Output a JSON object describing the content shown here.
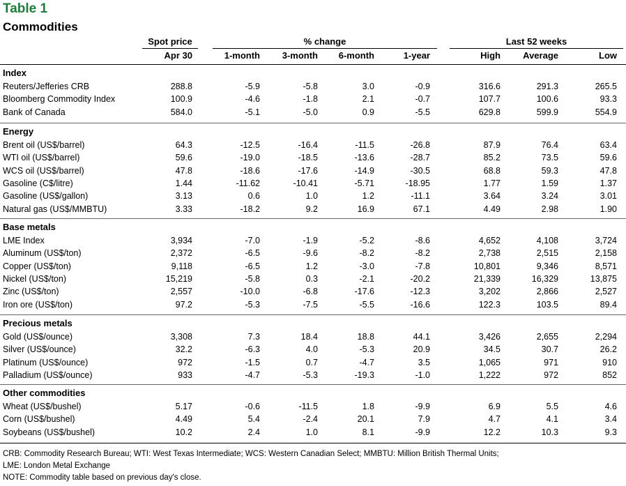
{
  "title": "Table 1",
  "subtitle": "Commodities",
  "header": {
    "spot_group": "Spot price",
    "change_group": "% change",
    "weeks_group": "Last 52 weeks",
    "columns": [
      "Apr 30",
      "1-month",
      "3-month",
      "6-month",
      "1-year",
      "High",
      "Average",
      "Low"
    ]
  },
  "sections": [
    {
      "name": "Index",
      "rows": [
        {
          "label": "Reuters/Jefferies CRB",
          "values": [
            "288.8",
            "-5.9",
            "-5.8",
            "3.0",
            "-0.9",
            "316.6",
            "291.3",
            "265.5"
          ]
        },
        {
          "label": "Bloomberg Commodity Index",
          "values": [
            "100.9",
            "-4.6",
            "-1.8",
            "2.1",
            "-0.7",
            "107.7",
            "100.6",
            "93.3"
          ]
        },
        {
          "label": "Bank of Canada",
          "values": [
            "584.0",
            "-5.1",
            "-5.0",
            "0.9",
            "-5.5",
            "629.8",
            "599.9",
            "554.9"
          ]
        }
      ]
    },
    {
      "name": "Energy",
      "rows": [
        {
          "label": "Brent oil (US$/barrel)",
          "values": [
            "64.3",
            "-12.5",
            "-16.4",
            "-11.5",
            "-26.8",
            "87.9",
            "76.4",
            "63.4"
          ]
        },
        {
          "label": "WTI oil (US$/barrel)",
          "values": [
            "59.6",
            "-19.0",
            "-18.5",
            "-13.6",
            "-28.7",
            "85.2",
            "73.5",
            "59.6"
          ]
        },
        {
          "label": "WCS oil (US$/barrel)",
          "values": [
            "47.8",
            "-18.6",
            "-17.6",
            "-14.9",
            "-30.5",
            "68.8",
            "59.3",
            "47.8"
          ]
        },
        {
          "label": "Gasoline (C$/litre)",
          "values": [
            "1.44",
            "-11.62",
            "-10.41",
            "-5.71",
            "-18.95",
            "1.77",
            "1.59",
            "1.37"
          ]
        },
        {
          "label": "Gasoline (US$/gallon)",
          "values": [
            "3.13",
            "0.6",
            "1.0",
            "1.2",
            "-11.1",
            "3.64",
            "3.24",
            "3.01"
          ]
        },
        {
          "label": "Natural gas (US$/MMBTU)",
          "values": [
            "3.33",
            "-18.2",
            "9.2",
            "16.9",
            "67.1",
            "4.49",
            "2.98",
            "1.90"
          ]
        }
      ]
    },
    {
      "name": "Base metals",
      "rows": [
        {
          "label": "LME Index",
          "values": [
            "3,934",
            "-7.0",
            "-1.9",
            "-5.2",
            "-8.6",
            "4,652",
            "4,108",
            "3,724"
          ]
        },
        {
          "label": "Aluminum (US$/ton)",
          "values": [
            "2,372",
            "-6.5",
            "-9.6",
            "-8.2",
            "-8.2",
            "2,738",
            "2,515",
            "2,158"
          ]
        },
        {
          "label": "Copper (US$/ton)",
          "values": [
            "9,118",
            "-6.5",
            "1.2",
            "-3.0",
            "-7.8",
            "10,801",
            "9,346",
            "8,571"
          ]
        },
        {
          "label": "Nickel (US$/ton)",
          "values": [
            "15,219",
            "-5.8",
            "0.3",
            "-2.1",
            "-20.2",
            "21,339",
            "16,329",
            "13,875"
          ]
        },
        {
          "label": "Zinc (US$/ton)",
          "values": [
            "2,557",
            "-10.0",
            "-6.8",
            "-17.6",
            "-12.3",
            "3,202",
            "2,866",
            "2,527"
          ]
        },
        {
          "label": "Iron ore (US$/ton)",
          "values": [
            "97.2",
            "-5.3",
            "-7.5",
            "-5.5",
            "-16.6",
            "122.3",
            "103.5",
            "89.4"
          ]
        }
      ]
    },
    {
      "name": "Precious metals",
      "rows": [
        {
          "label": "Gold (US$/ounce)",
          "values": [
            "3,308",
            "7.3",
            "18.4",
            "18.8",
            "44.1",
            "3,426",
            "2,655",
            "2,294"
          ]
        },
        {
          "label": "Silver (US$/ounce)",
          "values": [
            "32.2",
            "-6.3",
            "4.0",
            "-5.3",
            "20.9",
            "34.5",
            "30.7",
            "26.2"
          ]
        },
        {
          "label": "Platinum (US$/ounce)",
          "values": [
            "972",
            "-1.5",
            "0.7",
            "-4.7",
            "3.5",
            "1,065",
            "971",
            "910"
          ]
        },
        {
          "label": "Palladium (US$/ounce)",
          "values": [
            "933",
            "-4.7",
            "-5.3",
            "-19.3",
            "-1.0",
            "1,222",
            "972",
            "852"
          ]
        }
      ]
    },
    {
      "name": "Other commodities",
      "rows": [
        {
          "label": "Wheat (US$/bushel)",
          "values": [
            "5.17",
            "-0.6",
            "-11.5",
            "1.8",
            "-9.9",
            "6.9",
            "5.5",
            "4.6"
          ]
        },
        {
          "label": "Corn (US$/bushel)",
          "values": [
            "4.49",
            "5.4",
            "-2.4",
            "20.1",
            "7.9",
            "4.7",
            "4.1",
            "3.4"
          ]
        },
        {
          "label": "Soybeans (US$/bushel)",
          "values": [
            "10.2",
            "2.4",
            "1.0",
            "8.1",
            "-9.9",
            "12.2",
            "10.3",
            "9.3"
          ]
        }
      ]
    }
  ],
  "footnotes": [
    "CRB: Commodity Research Bureau; WTI: West Texas Intermediate; WCS: Western Canadian Select; MMBTU: Million British Thermal Units;",
    "LME: London Metal Exchange",
    "NOTE: Commodity table based on previous day's close."
  ]
}
